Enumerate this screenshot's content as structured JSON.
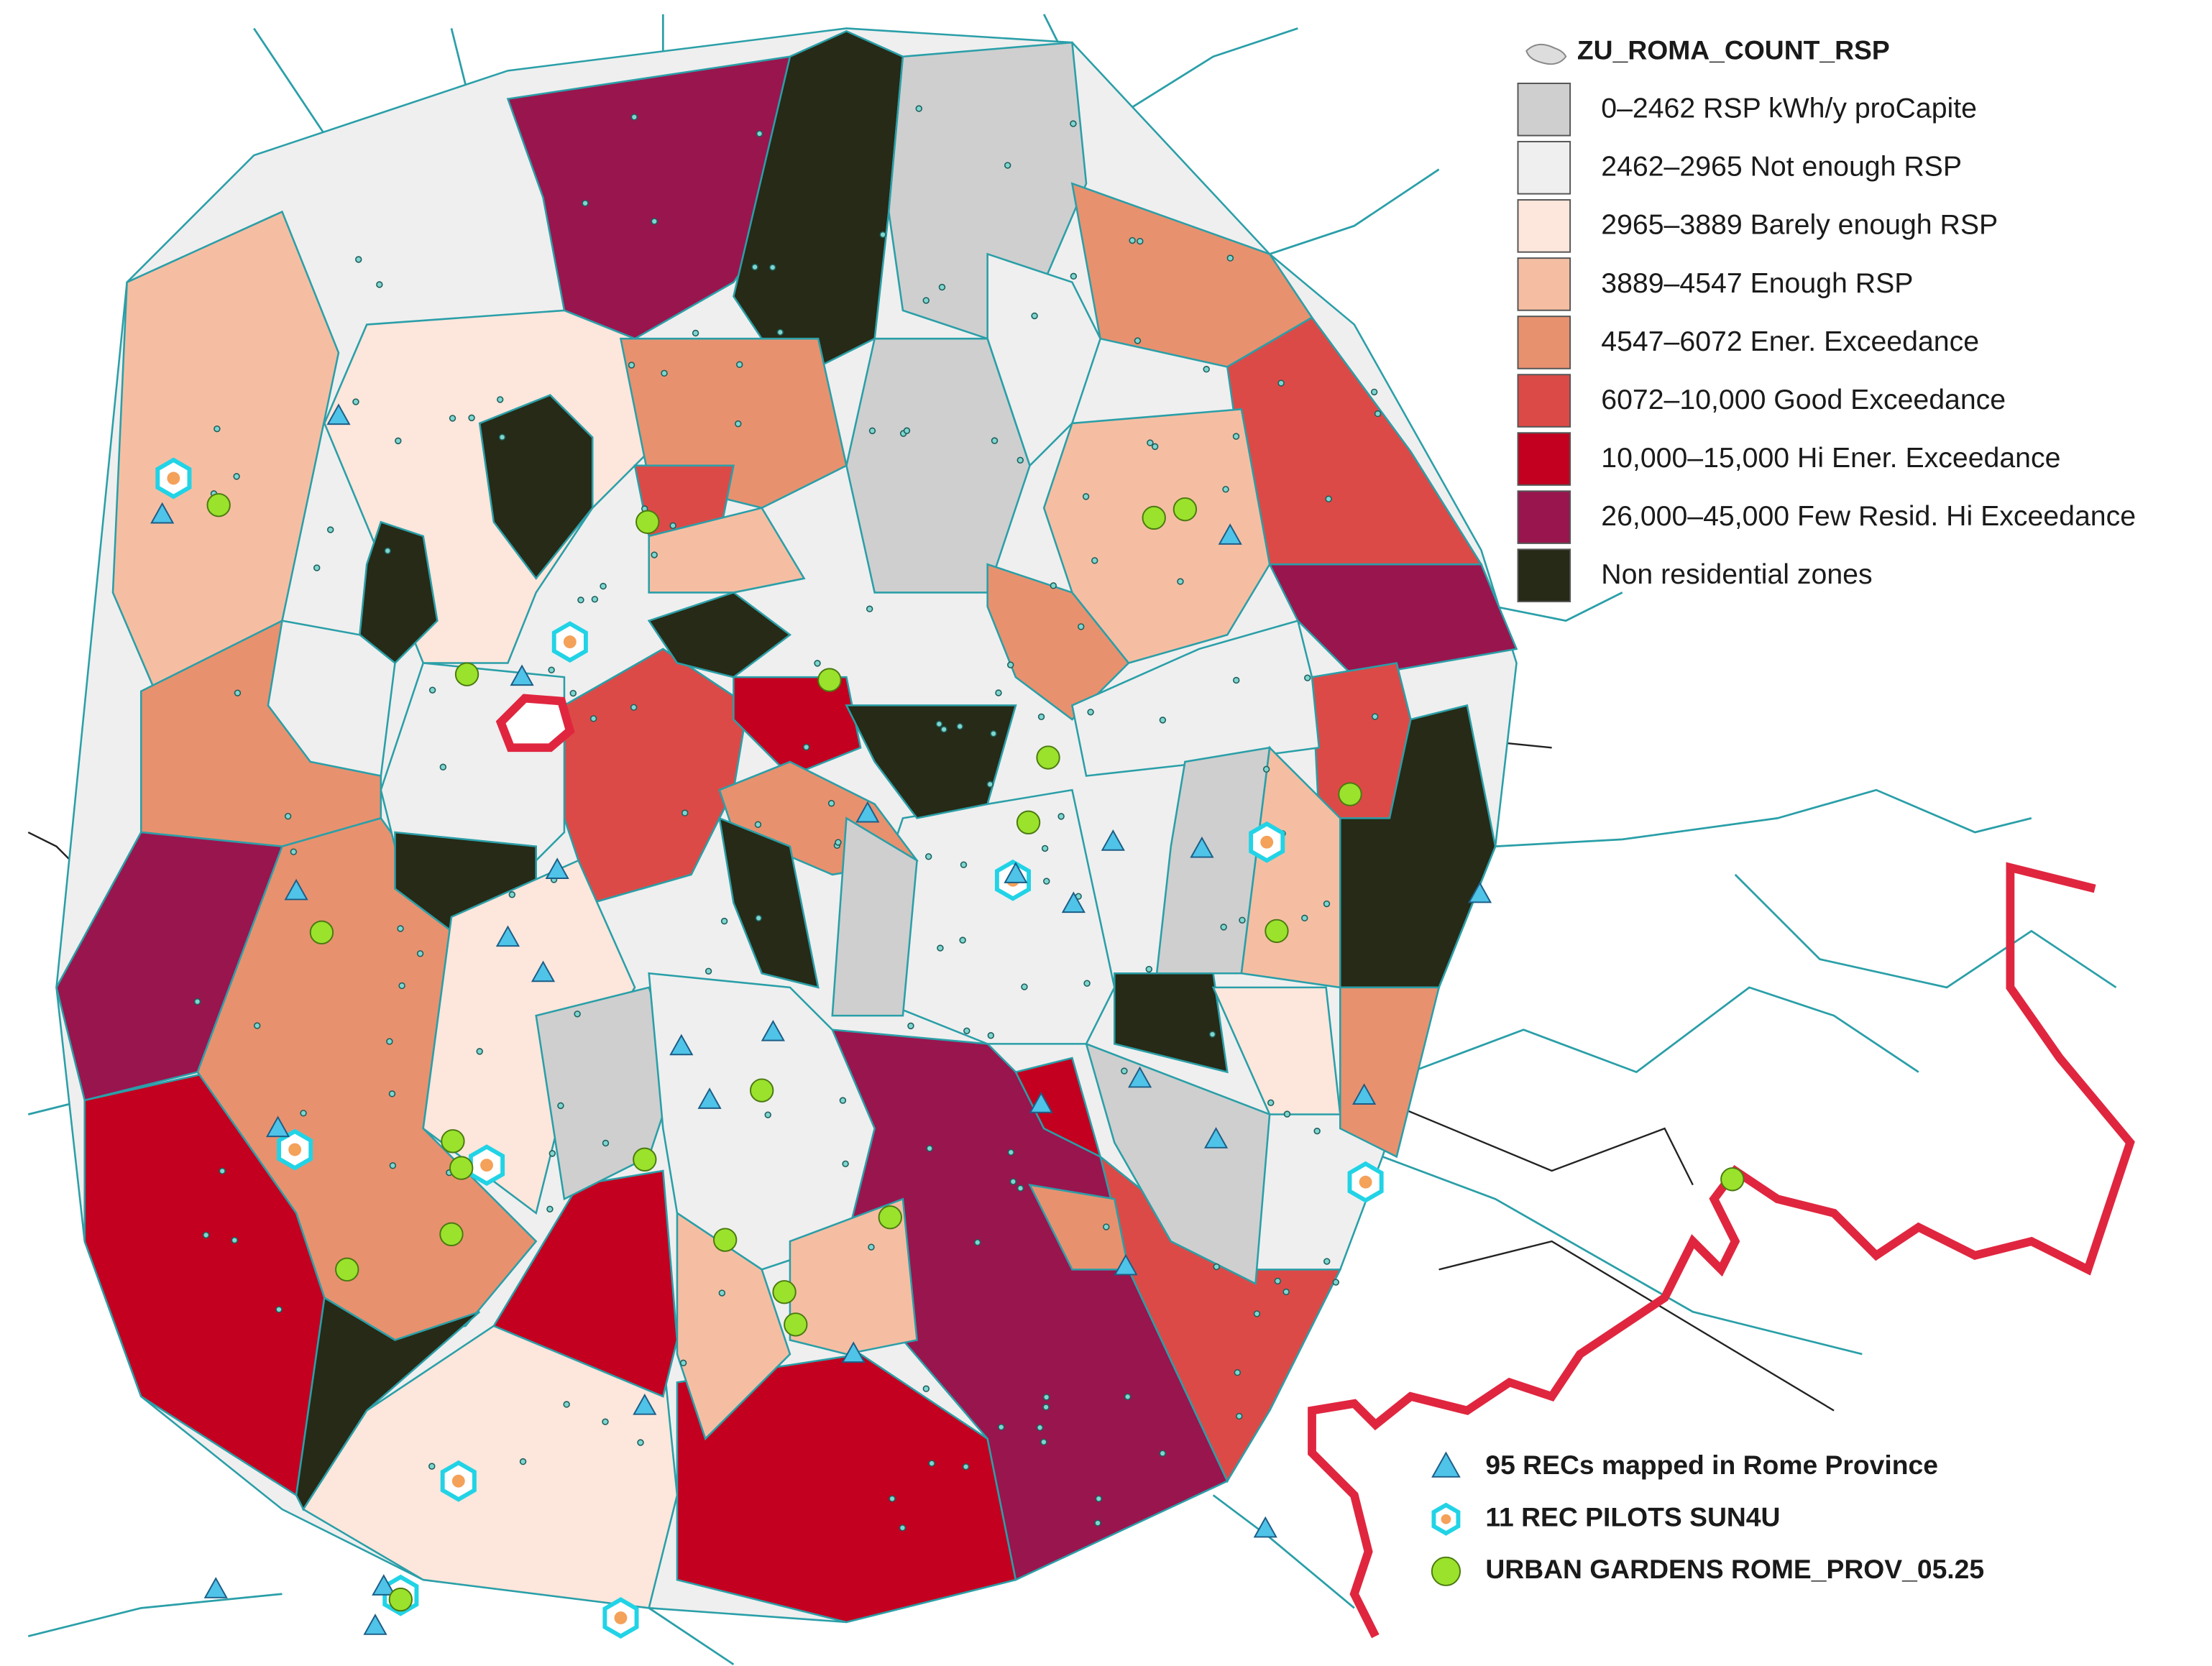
{
  "legend": {
    "title": "ZU_ROMA_COUNT_RSP",
    "items": [
      {
        "label": "0–2462 RSP kWh/y proCapite",
        "color": "#cfcfcf"
      },
      {
        "label": "2462–2965 Not enough RSP",
        "color": "#efefef"
      },
      {
        "label": "2965–3889 Barely enough RSP",
        "color": "#fde6dc"
      },
      {
        "label": "3889–4547 Enough RSP",
        "color": "#f5bea3"
      },
      {
        "label": "4547–6072 Ener. Exceedance",
        "color": "#e8916f"
      },
      {
        "label": "6072–10,000 Good Exceedance",
        "color": "#dc4a47"
      },
      {
        "label": "10,000–15,000 Hi Ener. Exceedance",
        "color": "#c3001f"
      },
      {
        "label": "26,000–45,000 Few Resid. Hi Exceedance",
        "color": "#99154e"
      },
      {
        "label": "Non residential zones",
        "color": "#262a16"
      }
    ]
  },
  "markers_legend": {
    "items": [
      {
        "label": "95 RECs mapped in Rome Province",
        "color": "#4fc3e8"
      },
      {
        "label": "11 REC PILOTS SUN4U",
        "color": "#22d3e6"
      },
      {
        "label": "URBAN GARDENS ROME_PROV_05.25",
        "color": "#9be22c"
      }
    ]
  }
}
